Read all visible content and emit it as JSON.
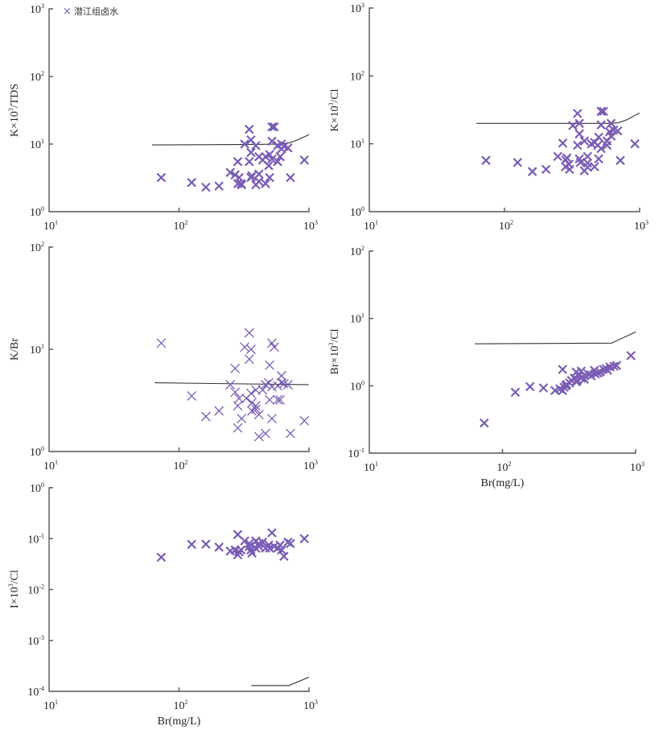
{
  "figure": {
    "marker_color": "#7a5cb5",
    "line_color": "#333333",
    "legend": {
      "symbol": "×",
      "label": "潜江组卤水"
    }
  },
  "chart_data": [
    {
      "id": "k-tds",
      "type": "scatter",
      "title": "",
      "xlabel": "",
      "ylabel": "K×10³/TDS",
      "ylabel_parts": {
        "pre": "K×10",
        "sup": "3",
        "post": "/TDS"
      },
      "xscale": "log",
      "yscale": "log",
      "xlim": [
        10,
        1000
      ],
      "ylim": [
        1,
        1000
      ],
      "xticks": [
        {
          "base": "10",
          "exp": "1"
        },
        {
          "base": "10",
          "exp": "2"
        },
        {
          "base": "10",
          "exp": "3"
        }
      ],
      "yticks": [
        {
          "base": "10",
          "exp": "0"
        },
        {
          "base": "10",
          "exp": "1"
        },
        {
          "base": "10",
          "exp": "2"
        },
        {
          "base": "10",
          "exp": "3"
        }
      ],
      "grid": false,
      "legend": "top-left",
      "marker_style": "bold",
      "reference_line": {
        "x": [
          62,
          200,
          400,
          600,
          700,
          800,
          1000
        ],
        "y": [
          9.7,
          9.8,
          9.9,
          10.0,
          10.4,
          11.3,
          13.8
        ]
      },
      "x": [
        73,
        125,
        161,
        203,
        248,
        270,
        283,
        283,
        290,
        300,
        303,
        320,
        347,
        347,
        358,
        358,
        358,
        364,
        390,
        390,
        412,
        412,
        412,
        440,
        464,
        464,
        490,
        498,
        498,
        519,
        519,
        519,
        540,
        574,
        574,
        600,
        615,
        615,
        642,
        689,
        720,
        922
      ],
      "y": [
        3.2,
        2.7,
        2.3,
        2.4,
        3.8,
        3.5,
        5.5,
        2.6,
        3.2,
        2.6,
        2.5,
        10.0,
        16.5,
        5.5,
        11.5,
        3.2,
        7.5,
        3.4,
        9.5,
        2.5,
        6.5,
        3.6,
        2.8,
        5.8,
        6.5,
        2.6,
        4.8,
        7.0,
        3.2,
        18.0,
        11.0,
        6.0,
        18.0,
        5.5,
        9.5,
        6.5,
        10.0,
        8.5,
        9.2,
        8.8,
        3.2,
        5.8
      ]
    },
    {
      "id": "k-cl",
      "type": "scatter",
      "title": "",
      "xlabel": "",
      "ylabel": "K×10³/Cl",
      "ylabel_parts": {
        "pre": "K×10",
        "sup": "3",
        "post": "/Cl"
      },
      "xscale": "log",
      "yscale": "log",
      "xlim": [
        10,
        1000
      ],
      "ylim": [
        1,
        1000
      ],
      "xticks": [
        {
          "base": "10",
          "exp": "1"
        },
        {
          "base": "10",
          "exp": "2"
        },
        {
          "base": "10",
          "exp": "3"
        }
      ],
      "yticks": [
        {
          "base": "10",
          "exp": "0"
        },
        {
          "base": "10",
          "exp": "1"
        },
        {
          "base": "10",
          "exp": "2"
        },
        {
          "base": "10",
          "exp": "3"
        }
      ],
      "grid": false,
      "legend": "none",
      "marker_style": "bold",
      "reference_line": {
        "x": [
          62,
          200,
          400,
          600,
          700,
          800,
          1000
        ],
        "y": [
          20,
          20,
          20,
          20,
          20.5,
          22.5,
          28.5
        ]
      },
      "x": [
        73,
        125,
        161,
        203,
        248,
        270,
        283,
        283,
        290,
        300,
        303,
        320,
        347,
        347,
        358,
        358,
        358,
        364,
        390,
        390,
        412,
        412,
        412,
        440,
        464,
        464,
        490,
        498,
        498,
        519,
        519,
        519,
        540,
        574,
        574,
        600,
        615,
        615,
        642,
        689,
        720,
        922
      ],
      "y": [
        5.7,
        5.3,
        3.9,
        4.2,
        6.5,
        10.2,
        5.8,
        4.6,
        6.2,
        5.0,
        4.2,
        18.5,
        28.0,
        9.5,
        20.0,
        6.0,
        14.0,
        5.3,
        11.0,
        4.0,
        6.5,
        5.2,
        4.5,
        10.0,
        10.5,
        4.6,
        9.5,
        12.5,
        6.0,
        30.0,
        19.0,
        8.5,
        30.0,
        11.0,
        9.5,
        15.0,
        20.0,
        13.0,
        16.0,
        15.5,
        5.7,
        10.0
      ]
    },
    {
      "id": "k-br",
      "type": "scatter",
      "title": "",
      "xlabel": "",
      "ylabel": "K/Br",
      "ylabel_parts": {
        "pre": "K/Br",
        "sup": "",
        "post": ""
      },
      "xscale": "log",
      "yscale": "log",
      "xlim": [
        10,
        1000
      ],
      "ylim": [
        1,
        100
      ],
      "xticks": [
        {
          "base": "10",
          "exp": "1"
        },
        {
          "base": "10",
          "exp": "2"
        },
        {
          "base": "10",
          "exp": "3"
        }
      ],
      "yticks": [
        {
          "base": "10",
          "exp": "0"
        },
        {
          "base": "10",
          "exp": "1"
        },
        {
          "base": "10",
          "exp": "2"
        }
      ],
      "grid": false,
      "legend": "none",
      "marker_style": "thin",
      "reference_line": {
        "x": [
          65,
          1000
        ],
        "y": [
          4.7,
          4.5
        ]
      },
      "x": [
        73,
        125,
        161,
        203,
        248,
        270,
        270,
        283,
        283,
        290,
        303,
        320,
        330,
        347,
        347,
        358,
        358,
        364,
        364,
        390,
        390,
        390,
        412,
        412,
        440,
        464,
        464,
        490,
        498,
        498,
        519,
        519,
        519,
        540,
        574,
        574,
        600,
        615,
        615,
        642,
        689,
        720,
        922
      ],
      "y": [
        11.5,
        3.5,
        2.2,
        2.5,
        4.5,
        6.5,
        3.8,
        2.8,
        1.7,
        3.3,
        2.1,
        10.5,
        3.3,
        14.5,
        8.0,
        10.0,
        3.7,
        2.5,
        3.0,
        4.0,
        2.8,
        2.6,
        1.4,
        2.3,
        4.0,
        4.5,
        1.5,
        4.7,
        7.0,
        3.2,
        11.5,
        2.1,
        4.3,
        10.5,
        3.2,
        4.4,
        3.2,
        5.5,
        4.7,
        4.6,
        4.5,
        1.5,
        2.0
      ]
    },
    {
      "id": "br-cl",
      "type": "scatter",
      "title": "",
      "xlabel": "Br(mg/L)",
      "ylabel": "Br×10³/Cl",
      "ylabel_parts": {
        "pre": "Br×10",
        "sup": "3",
        "post": "/Cl"
      },
      "xscale": "log",
      "yscale": "log",
      "xlim": [
        10,
        1000
      ],
      "ylim": [
        0.1,
        100
      ],
      "xticks": [
        {
          "base": "10",
          "exp": "1"
        },
        {
          "base": "10",
          "exp": "2"
        },
        {
          "base": "10",
          "exp": "3"
        }
      ],
      "yticks": [
        {
          "base": "10",
          "exp": "-1"
        },
        {
          "base": "10",
          "exp": "0"
        },
        {
          "base": "10",
          "exp": "1"
        },
        {
          "base": "10",
          "exp": "2"
        }
      ],
      "grid": false,
      "legend": "none",
      "marker_style": "bold",
      "reference_line": {
        "x": [
          62,
          660,
          1000
        ],
        "y": [
          4.2,
          4.3,
          6.3
        ]
      },
      "x": [
        73,
        125,
        161,
        203,
        248,
        270,
        283,
        283,
        290,
        300,
        303,
        320,
        330,
        347,
        358,
        358,
        364,
        375,
        390,
        390,
        412,
        412,
        440,
        464,
        490,
        498,
        519,
        540,
        574,
        600,
        615,
        642,
        689,
        720,
        922
      ],
      "y": [
        0.28,
        0.8,
        0.97,
        0.93,
        0.85,
        0.9,
        1.75,
        0.85,
        0.95,
        1.0,
        1.05,
        1.1,
        1.2,
        1.3,
        1.6,
        1.15,
        1.2,
        1.4,
        1.65,
        1.3,
        1.25,
        1.45,
        1.5,
        1.4,
        1.7,
        1.5,
        1.55,
        1.6,
        1.75,
        1.8,
        1.7,
        1.9,
        1.95,
        2.0,
        2.8
      ]
    },
    {
      "id": "i-cl",
      "type": "scatter",
      "title": "",
      "xlabel": "Br(mg/L)",
      "ylabel": "I×10³/Cl",
      "ylabel_parts": {
        "pre": "I×10",
        "sup": "3",
        "post": "/Cl"
      },
      "xscale": "log",
      "yscale": "log",
      "xlim": [
        10,
        1000
      ],
      "ylim": [
        0.0001,
        1
      ],
      "xticks": [
        {
          "base": "10",
          "exp": "1"
        },
        {
          "base": "10",
          "exp": "2"
        },
        {
          "base": "10",
          "exp": "3"
        }
      ],
      "yticks": [
        {
          "base": "10",
          "exp": "-4"
        },
        {
          "base": "10",
          "exp": "-3"
        },
        {
          "base": "10",
          "exp": "-2"
        },
        {
          "base": "10",
          "exp": "-1"
        },
        {
          "base": "10",
          "exp": "0"
        }
      ],
      "grid": false,
      "legend": "none",
      "marker_style": "bold",
      "reference_line": {
        "x": [
          360,
          700,
          1000
        ],
        "y": [
          0.00013,
          0.00013,
          0.00019
        ]
      },
      "x": [
        73,
        125,
        161,
        203,
        248,
        270,
        283,
        283,
        290,
        300,
        320,
        347,
        347,
        358,
        364,
        390,
        390,
        412,
        412,
        440,
        464,
        490,
        498,
        519,
        540,
        574,
        600,
        615,
        642,
        689,
        720,
        922
      ],
      "y": [
        0.043,
        0.077,
        0.078,
        0.068,
        0.057,
        0.06,
        0.12,
        0.048,
        0.055,
        0.06,
        0.09,
        0.07,
        0.08,
        0.06,
        0.052,
        0.09,
        0.065,
        0.07,
        0.08,
        0.085,
        0.065,
        0.075,
        0.065,
        0.13,
        0.07,
        0.065,
        0.075,
        0.06,
        0.045,
        0.085,
        0.08,
        0.1
      ]
    }
  ]
}
